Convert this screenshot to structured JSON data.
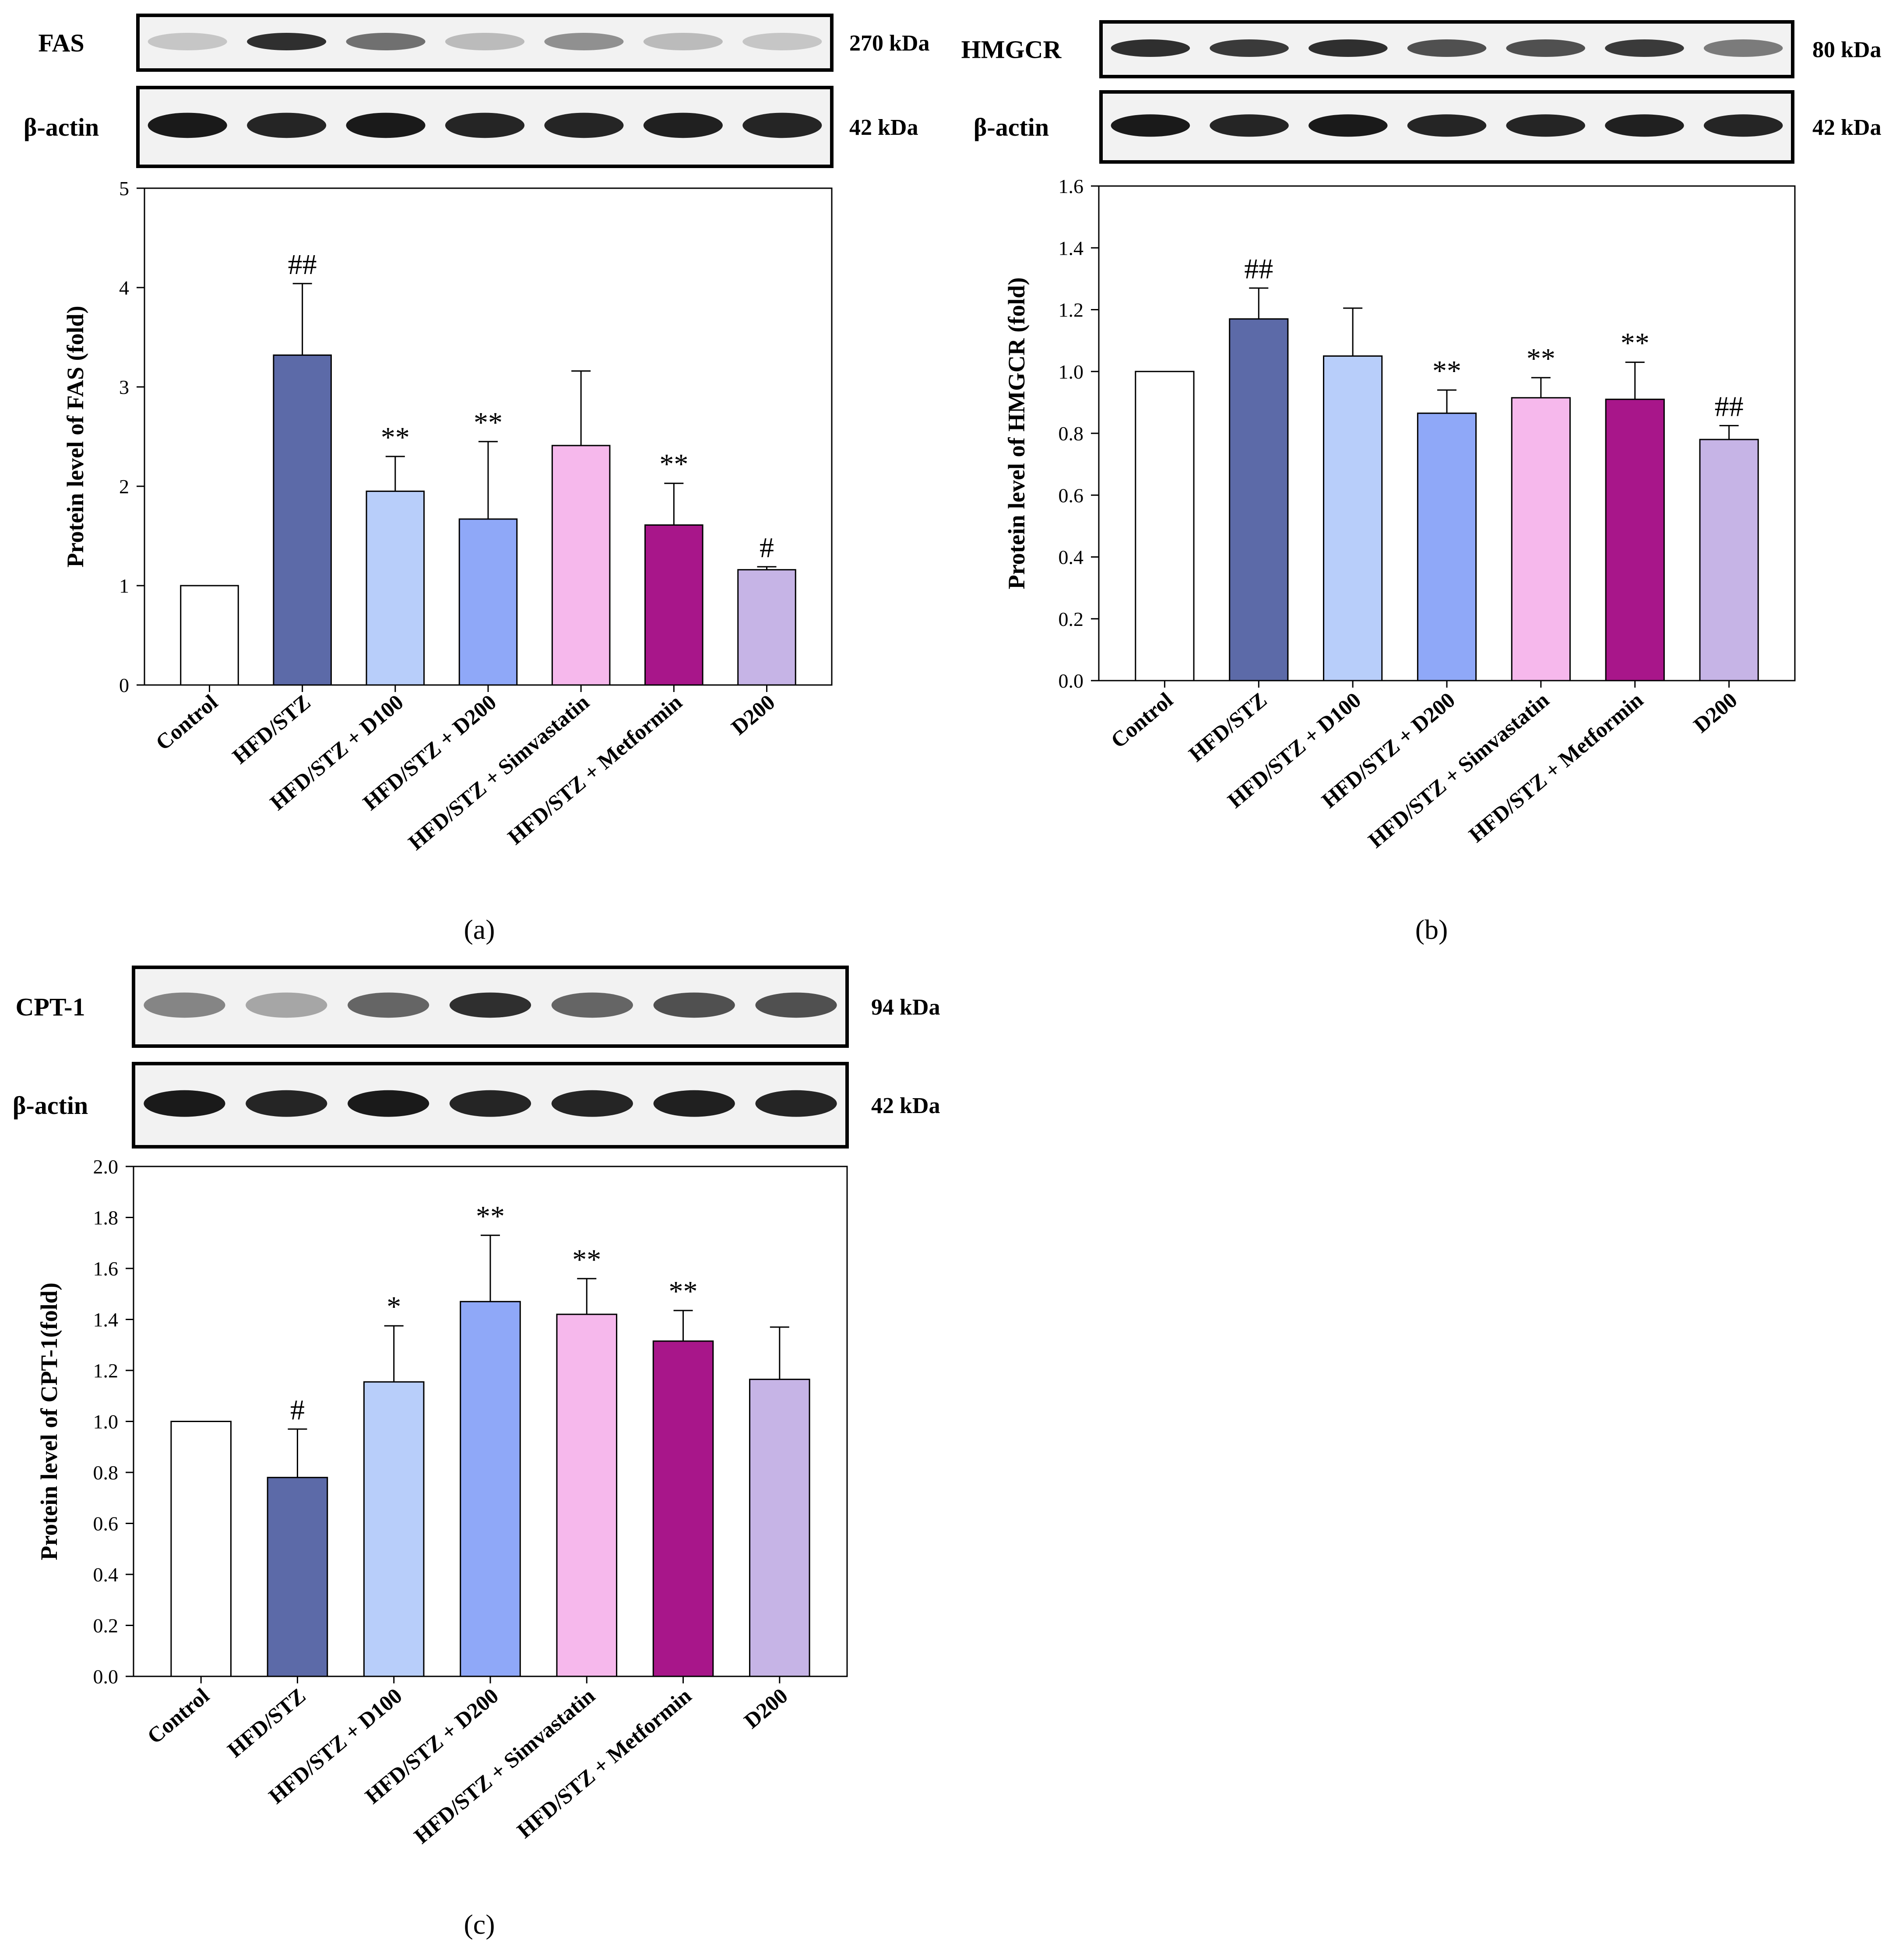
{
  "colors": {
    "bars": [
      "#ffffff",
      "#5c6aa8",
      "#b8cefa",
      "#8fa8f8",
      "#f6b8ec",
      "#a8168a",
      "#c6b4e6"
    ]
  },
  "panels": [
    {
      "id": "a",
      "panel_label": "(a)",
      "blot": {
        "target_label": "FAS",
        "target_kda": "270 kDa",
        "loading_label": "β-actin",
        "loading_kda": "42 kDa"
      },
      "chart_data": {
        "type": "bar",
        "ylabel": "Protein level of FAS (fold)",
        "ylim": [
          0,
          5
        ],
        "yticks": [
          "0",
          "1",
          "2",
          "3",
          "4",
          "5"
        ],
        "categories": [
          "Control",
          "HFD/STZ",
          "HFD/STZ + D100",
          "HFD/STZ + D200",
          "HFD/STZ + Simvastatin",
          "HFD/STZ + Metformin",
          "D200"
        ],
        "values": [
          1.0,
          3.32,
          1.95,
          1.67,
          2.41,
          1.61,
          1.16
        ],
        "errors": [
          0,
          0.72,
          0.35,
          0.78,
          0.75,
          0.42,
          0.03
        ],
        "annotations": [
          "",
          "##",
          "**",
          "**",
          "",
          "**",
          "#"
        ]
      }
    },
    {
      "id": "b",
      "panel_label": "(b)",
      "blot": {
        "target_label": "HMGCR",
        "target_kda": "80 kDa",
        "loading_label": "β-actin",
        "loading_kda": "42 kDa"
      },
      "chart_data": {
        "type": "bar",
        "ylabel": "Protein level of HMGCR (fold)",
        "ylim": [
          0,
          1.6
        ],
        "yticks": [
          "0.0",
          "0.2",
          "0.4",
          "0.6",
          "0.8",
          "1.0",
          "1.2",
          "1.4",
          "1.6"
        ],
        "categories": [
          "Control",
          "HFD/STZ",
          "HFD/STZ + D100",
          "HFD/STZ + D200",
          "HFD/STZ + Simvastatin",
          "HFD/STZ + Metformin",
          "D200"
        ],
        "values": [
          1.0,
          1.17,
          1.05,
          0.865,
          0.915,
          0.91,
          0.78
        ],
        "errors": [
          0,
          0.1,
          0.155,
          0.075,
          0.065,
          0.12,
          0.045
        ],
        "annotations": [
          "",
          "##",
          "",
          "**",
          "**",
          "**",
          "##"
        ]
      }
    },
    {
      "id": "c",
      "panel_label": "(c)",
      "blot": {
        "target_label": "CPT-1",
        "target_kda": "94 kDa",
        "loading_label": "β-actin",
        "loading_kda": "42 kDa"
      },
      "chart_data": {
        "type": "bar",
        "ylabel": "Protein level of CPT-1(fold)",
        "ylim": [
          0,
          2.0
        ],
        "yticks": [
          "0.0",
          "0.2",
          "0.4",
          "0.6",
          "0.8",
          "1.0",
          "1.2",
          "1.4",
          "1.6",
          "1.8",
          "2.0"
        ],
        "categories": [
          "Control",
          "HFD/STZ",
          "HFD/STZ + D100",
          "HFD/STZ + D200",
          "HFD/STZ + Simvastatin",
          "HFD/STZ + Metformin",
          "D200"
        ],
        "values": [
          1.0,
          0.78,
          1.155,
          1.47,
          1.42,
          1.315,
          1.165
        ],
        "errors": [
          0,
          0.19,
          0.22,
          0.26,
          0.14,
          0.12,
          0.205
        ],
        "annotations": [
          "",
          "#",
          "*",
          "**",
          "**",
          "**",
          ""
        ]
      }
    }
  ]
}
